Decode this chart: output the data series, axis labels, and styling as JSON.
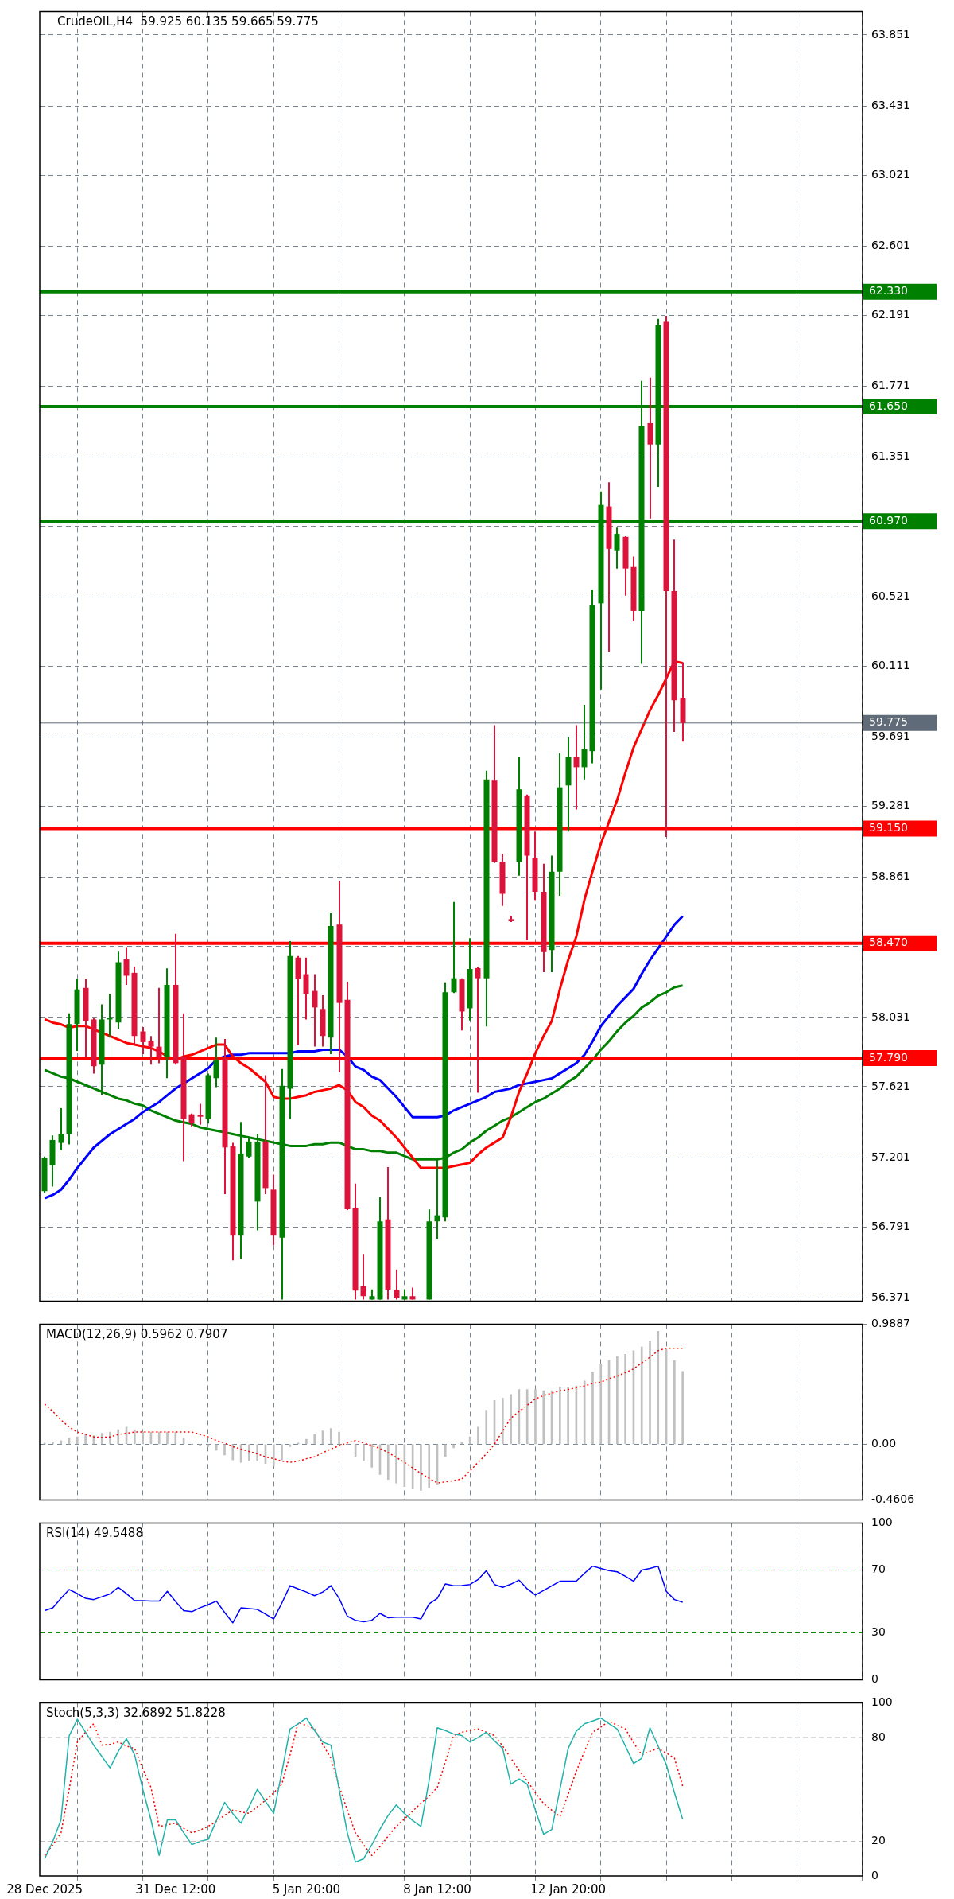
{
  "chart_data": [
    {
      "type": "candlestick",
      "title": "CrudeOIL,H4  59.925 60.135 59.665 59.775",
      "tick_labels": "y",
      "grid": true,
      "categories": [
        null,
        null,
        null,
        null,
        null,
        null,
        null,
        null,
        null,
        null,
        null,
        null,
        null,
        null,
        null,
        null,
        null,
        null,
        null,
        null,
        null,
        null,
        null,
        null,
        null,
        null,
        null,
        null,
        null,
        null,
        null,
        null,
        null,
        null,
        null,
        null,
        null,
        null,
        null,
        null,
        null,
        null,
        null,
        null,
        null,
        null,
        null,
        null,
        null,
        null,
        null,
        null,
        null,
        null,
        null,
        null,
        null,
        null,
        null,
        null,
        null,
        null,
        null,
        null,
        null,
        null,
        null,
        null,
        null,
        null,
        null,
        null,
        null,
        null,
        null,
        null,
        null,
        null,
        null
      ],
      "ohlc": [
        [
          57.002,
          57.207,
          56.993,
          57.198
        ],
        [
          57.154,
          57.332,
          57.029,
          57.305
        ],
        [
          57.288,
          57.493,
          57.243,
          57.341
        ],
        [
          57.341,
          58.055,
          57.279,
          57.992
        ],
        [
          57.992,
          58.26,
          57.832,
          58.197
        ],
        [
          58.206,
          58.26,
          57.796,
          58.01
        ],
        [
          58.019,
          58.028,
          57.698,
          57.742
        ],
        [
          57.751,
          58.108,
          57.573,
          58.019
        ],
        [
          58.019,
          58.171,
          57.912,
          58.028
        ],
        [
          58.001,
          58.42,
          57.965,
          58.358
        ],
        [
          58.376,
          58.447,
          58.224,
          58.278
        ],
        [
          58.295,
          58.331,
          57.867,
          57.921
        ],
        [
          57.948,
          57.974,
          57.814,
          57.885
        ],
        [
          57.894,
          57.921,
          57.751,
          57.858
        ],
        [
          57.858,
          58.206,
          57.76,
          57.796
        ],
        [
          57.796,
          58.322,
          57.671,
          58.224
        ],
        [
          58.224,
          58.527,
          57.751,
          57.76
        ],
        [
          57.796,
          58.055,
          57.18,
          57.43
        ],
        [
          57.457,
          57.461,
          57.386,
          57.403
        ],
        [
          57.453,
          57.519,
          57.395,
          57.443
        ],
        [
          57.43,
          57.698,
          57.403,
          57.689
        ],
        [
          57.671,
          57.912,
          57.618,
          57.778
        ],
        [
          57.787,
          57.903,
          56.984,
          57.261
        ],
        [
          57.27,
          57.288,
          56.592,
          56.743
        ],
        [
          56.743,
          57.412,
          56.601,
          57.225
        ],
        [
          57.207,
          57.314,
          57.198,
          57.296
        ],
        [
          56.94,
          57.341,
          56.77,
          57.296
        ],
        [
          57.296,
          57.689,
          56.984,
          57.02
        ],
        [
          57.011,
          57.1,
          56.681,
          56.743
        ],
        [
          56.726,
          57.725,
          56.36,
          57.626
        ],
        [
          57.609,
          58.483,
          57.43,
          58.394
        ],
        [
          58.385,
          58.394,
          57.867,
          58.26
        ],
        [
          58.287,
          58.385,
          58.019,
          58.171
        ],
        [
          58.188,
          58.287,
          57.858,
          58.09
        ],
        [
          58.081,
          58.162,
          57.858,
          57.921
        ],
        [
          57.912,
          58.652,
          57.814,
          58.572
        ],
        [
          58.581,
          58.84,
          57.707,
          58.117
        ],
        [
          58.135,
          58.242,
          56.89,
          56.895
        ],
        [
          56.904,
          57.047,
          56.36,
          56.413
        ],
        [
          56.44,
          56.63,
          56.36,
          56.38
        ],
        [
          56.36,
          56.42,
          56.36,
          56.38
        ],
        [
          56.36,
          56.966,
          56.36,
          56.823
        ],
        [
          56.835,
          57.144,
          56.36,
          56.418
        ],
        [
          56.418,
          56.538,
          56.36,
          56.37
        ],
        [
          56.36,
          56.42,
          56.36,
          56.38
        ],
        [
          56.38,
          56.43,
          56.36,
          56.36
        ],
        null,
        [
          56.36,
          56.894,
          56.36,
          56.823
        ],
        [
          56.823,
          57.192,
          56.716,
          56.859
        ],
        [
          56.847,
          58.239,
          56.823,
          58.18
        ],
        [
          58.18,
          58.715,
          58.175,
          58.263
        ],
        [
          58.256,
          58.263,
          57.954,
          58.066
        ],
        [
          58.085,
          58.501,
          58.013,
          58.318
        ],
        [
          58.323,
          58.33,
          57.585,
          58.263
        ],
        [
          58.263,
          59.493,
          57.977,
          59.441
        ],
        [
          59.434,
          59.762,
          58.946,
          58.953
        ],
        [
          58.953,
          59.001,
          58.691,
          58.763
        ],
        [
          58.613,
          58.632,
          58.596,
          58.601
        ],
        [
          58.953,
          59.572,
          58.87,
          59.382
        ],
        [
          59.346,
          59.351,
          58.489,
          58.989
        ],
        [
          58.977,
          59.132,
          58.727,
          58.775
        ],
        [
          58.775,
          58.941,
          58.299,
          58.418
        ],
        [
          58.43,
          58.989,
          58.299,
          58.894
        ],
        [
          58.894,
          59.596,
          58.751,
          59.394
        ],
        [
          59.405,
          59.691,
          59.132,
          59.572
        ],
        [
          59.572,
          59.762,
          59.263,
          59.513
        ],
        [
          59.513,
          59.883,
          59.441,
          59.62
        ],
        [
          59.608,
          60.565,
          59.536,
          60.475
        ],
        [
          60.484,
          61.147,
          59.973,
          61.067
        ],
        [
          61.058,
          61.201,
          60.197,
          60.807
        ],
        [
          60.798,
          60.932,
          60.69,
          60.896
        ],
        [
          60.878,
          60.882,
          60.529,
          60.69
        ],
        [
          60.699,
          60.762,
          60.377,
          60.439
        ],
        [
          60.439,
          61.802,
          60.125,
          61.533
        ],
        [
          61.551,
          61.82,
          60.986,
          61.425
        ],
        [
          61.425,
          62.169,
          61.174,
          62.134
        ],
        [
          62.152,
          62.187,
          59.1,
          60.556
        ],
        [
          60.556,
          60.861,
          59.722,
          59.91
        ],
        [
          59.925,
          60.135,
          59.665,
          59.775
        ]
      ],
      "colors": [
        "#008000",
        "#008000",
        "#008000",
        "#008000",
        "#008000",
        "#dc143c",
        "#dc143c",
        "#008000",
        "#008000",
        "#008000",
        "#dc143c",
        "#dc143c",
        "#dc143c",
        "#dc143c",
        "#dc143c",
        "#008000",
        "#dc143c",
        "#dc143c",
        "#dc143c",
        "#dc143c",
        "#008000",
        "#008000",
        "#dc143c",
        "#dc143c",
        "#008000",
        "#008000",
        "#008000",
        "#dc143c",
        "#dc143c",
        "#008000",
        "#008000",
        "#dc143c",
        "#dc143c",
        "#dc143c",
        "#dc143c",
        "#008000",
        "#dc143c",
        "#dc143c",
        "#dc143c",
        "#dc143c",
        "#008000",
        "#008000",
        "#dc143c",
        "#dc143c",
        "#008000",
        "#dc143c",
        null,
        "#008000",
        "#008000",
        "#008000",
        "#008000",
        "#dc143c",
        "#008000",
        "#dc143c",
        "#008000",
        "#dc143c",
        "#dc143c",
        "#dc143c",
        "#008000",
        "#dc143c",
        "#dc143c",
        "#dc143c",
        "#008000",
        "#008000",
        "#008000",
        "#dc143c",
        "#008000",
        "#008000",
        "#008000",
        "#dc143c",
        "#008000",
        "#dc143c",
        "#dc143c",
        "#008000",
        "#dc143c",
        "#008000",
        "#dc143c",
        "#dc143c",
        "#dc143c"
      ],
      "series": [
        {
          "type": "line",
          "color": "#ff0000",
          "values": [
            58.02,
            58.0,
            57.99,
            57.97,
            57.98,
            57.98,
            57.96,
            57.94,
            57.92,
            57.9,
            57.88,
            57.87,
            57.86,
            57.85,
            57.83,
            57.8,
            57.78,
            57.8,
            57.81,
            57.83,
            57.85,
            57.87,
            57.87,
            57.8,
            57.76,
            57.73,
            57.69,
            57.65,
            57.56,
            57.55,
            57.55,
            57.56,
            57.57,
            57.59,
            57.6,
            57.61,
            57.63,
            57.6,
            57.53,
            57.5,
            57.45,
            57.42,
            57.37,
            57.32,
            57.26,
            57.2,
            57.14,
            57.14,
            57.14,
            57.14,
            57.15,
            57.16,
            57.17,
            57.22,
            57.26,
            57.29,
            57.32,
            57.44,
            57.59,
            57.7,
            57.82,
            57.92,
            58.01,
            58.2,
            58.37,
            58.51,
            58.73,
            58.9,
            59.06,
            59.19,
            59.32,
            59.48,
            59.63,
            59.74,
            59.85,
            59.94,
            60.04,
            60.14,
            60.13
          ]
        },
        {
          "type": "line",
          "color": "#0000ff",
          "values": [
            56.96,
            56.98,
            57.01,
            57.07,
            57.14,
            57.2,
            57.26,
            57.3,
            57.34,
            57.37,
            57.4,
            57.43,
            57.47,
            57.5,
            57.53,
            57.57,
            57.61,
            57.64,
            57.67,
            57.7,
            57.73,
            57.78,
            57.8,
            57.81,
            57.81,
            57.82,
            57.82,
            57.82,
            57.82,
            57.82,
            57.82,
            57.83,
            57.83,
            57.83,
            57.84,
            57.84,
            57.84,
            57.8,
            57.74,
            57.72,
            57.68,
            57.66,
            57.61,
            57.56,
            57.5,
            57.44,
            57.44,
            57.44,
            57.44,
            57.45,
            57.48,
            57.5,
            57.52,
            57.54,
            57.56,
            57.59,
            57.6,
            57.61,
            57.63,
            57.64,
            57.65,
            57.66,
            57.67,
            57.7,
            57.73,
            57.76,
            57.81,
            57.89,
            57.98,
            58.04,
            58.1,
            58.15,
            58.2,
            58.29,
            58.37,
            58.44,
            58.51,
            58.58,
            58.63
          ]
        },
        {
          "type": "line",
          "color": "#008000",
          "values": [
            57.72,
            57.7,
            57.68,
            57.67,
            57.65,
            57.63,
            57.61,
            57.59,
            57.57,
            57.55,
            57.54,
            57.52,
            57.51,
            57.48,
            57.46,
            57.44,
            57.42,
            57.41,
            57.4,
            57.38,
            57.37,
            57.36,
            57.35,
            57.34,
            57.33,
            57.32,
            57.31,
            57.3,
            57.29,
            57.28,
            57.27,
            57.27,
            57.27,
            57.28,
            57.28,
            57.29,
            57.29,
            57.27,
            57.25,
            57.25,
            57.24,
            57.24,
            57.23,
            57.23,
            57.21,
            57.19,
            57.19,
            57.19,
            57.19,
            57.2,
            57.23,
            57.25,
            57.29,
            57.32,
            57.36,
            57.39,
            57.42,
            57.44,
            57.47,
            57.5,
            57.53,
            57.55,
            57.58,
            57.61,
            57.65,
            57.68,
            57.73,
            57.78,
            57.84,
            57.89,
            57.95,
            58.0,
            58.04,
            58.09,
            58.12,
            58.16,
            58.18,
            58.21,
            58.22
          ]
        }
      ],
      "ylim": [
        56.35,
        63.99
      ],
      "yticks": [
        63.851,
        63.431,
        63.021,
        62.601,
        62.191,
        61.771,
        61.351,
        {
          "value": 60.941,
          "label": null
        },
        60.521,
        60.111,
        59.691,
        59.281,
        58.861,
        {
          "value": 58.451,
          "label": null
        },
        58.031,
        57.621,
        57.201,
        56.791,
        56.371
      ],
      "ref_lines": [
        {
          "axis": "y",
          "value": 62.33,
          "label": "62.330",
          "color": "#008000"
        },
        {
          "axis": "y",
          "value": 61.65,
          "label": "61.650",
          "color": "#008000"
        },
        {
          "axis": "y",
          "value": 60.97,
          "label": "60.970",
          "color": "#008000"
        },
        {
          "axis": "y",
          "value": 59.775,
          "label": "59.775",
          "color": "#5f6b78",
          "line_style": "solid"
        },
        {
          "axis": "y",
          "value": 59.15,
          "label": "59.150",
          "color": "#ff0000"
        },
        {
          "axis": "y",
          "value": 58.47,
          "label": "58.470",
          "color": "#ff0000"
        },
        {
          "axis": "y",
          "value": 57.79,
          "label": "57.790",
          "color": "#ff0000"
        }
      ]
    },
    {
      "type": "bar",
      "title": "MACD(12,26,9) 0.5962 0.7907",
      "tick_labels": "y",
      "grid": true,
      "categories": [
        null,
        null,
        null,
        null,
        null,
        null,
        null,
        null,
        null,
        null,
        null,
        null,
        null,
        null,
        null,
        null,
        null,
        null,
        null,
        null,
        null,
        null,
        null,
        null,
        null,
        null,
        null,
        null,
        null,
        null,
        null,
        null,
        null,
        null,
        null,
        null,
        null,
        null,
        null,
        null,
        null,
        null,
        null,
        null,
        null,
        null,
        null,
        null,
        null,
        null,
        null,
        null,
        null,
        null,
        null,
        null,
        null,
        null,
        null,
        null,
        null,
        null,
        null,
        null,
        null,
        null,
        null,
        null,
        null,
        null,
        null,
        null,
        null,
        null,
        null,
        null,
        null,
        null,
        null
      ],
      "series": [
        {
          "type": "bar",
          "color": "#c0c0c0",
          "values": [
            0.01,
            0.02,
            0.03,
            0.05,
            0.06,
            0.08,
            0.07,
            0.09,
            0.1,
            0.12,
            0.14,
            0.12,
            0.1,
            0.1,
            0.1,
            0.1,
            0.1,
            0.05,
            0.0,
            -0.01,
            -0.02,
            -0.05,
            -0.09,
            -0.13,
            -0.15,
            -0.14,
            -0.14,
            -0.16,
            -0.18,
            -0.13,
            -0.02,
            0.01,
            0.04,
            0.08,
            0.11,
            0.13,
            0.1,
            0.0,
            -0.1,
            -0.14,
            -0.19,
            -0.25,
            -0.29,
            -0.32,
            -0.35,
            -0.37,
            -0.38,
            -0.36,
            -0.33,
            -0.1,
            -0.03,
            0.02,
            0.06,
            0.14,
            0.28,
            0.36,
            0.38,
            0.41,
            0.45,
            0.45,
            0.45,
            0.44,
            0.44,
            0.47,
            0.47,
            0.48,
            0.52,
            0.59,
            0.66,
            0.69,
            0.72,
            0.74,
            0.77,
            0.8,
            0.85,
            0.93,
            0.78,
            0.69,
            0.6
          ]
        },
        {
          "type": "line",
          "color": "#ff0000",
          "line_style": "dotted",
          "values": [
            0.33,
            0.27,
            0.2,
            0.14,
            0.1,
            0.08,
            0.06,
            0.055,
            0.06,
            0.08,
            0.09,
            0.1,
            0.1,
            0.1,
            0.1,
            0.1,
            0.1,
            0.1,
            0.1,
            0.08,
            0.06,
            0.03,
            0.01,
            -0.02,
            -0.04,
            -0.06,
            -0.08,
            -0.105,
            -0.12,
            -0.14,
            -0.15,
            -0.14,
            -0.12,
            -0.105,
            -0.07,
            -0.04,
            -0.014,
            0.01,
            0.03,
            0.01,
            -0.01,
            -0.036,
            -0.07,
            -0.11,
            -0.15,
            -0.196,
            -0.24,
            -0.28,
            -0.32,
            -0.31,
            -0.3,
            -0.287,
            -0.22,
            -0.15,
            -0.08,
            0.0,
            0.11,
            0.214,
            0.27,
            0.32,
            0.374,
            0.4,
            0.42,
            0.44,
            0.45,
            0.465,
            0.48,
            0.5,
            0.51,
            0.54,
            0.56,
            0.59,
            0.62,
            0.67,
            0.716,
            0.77,
            0.79,
            0.79,
            0.79
          ]
        }
      ],
      "ylim": [
        -0.4606,
        0.9887
      ],
      "yticks": [
        0.9887,
        {
          "value": 0,
          "label": "0.00"
        },
        -0.4606
      ]
    },
    {
      "type": "line",
      "title": "RSI(14) 49.5488",
      "tick_labels": "y",
      "grid": "x",
      "categories": [
        null,
        null,
        null,
        null,
        null,
        null,
        null,
        null,
        null,
        null,
        null,
        null,
        null,
        null,
        null,
        null,
        null,
        null,
        null,
        null,
        null,
        null,
        null,
        null,
        null,
        null,
        null,
        null,
        null,
        null,
        null,
        null,
        null,
        null,
        null,
        null,
        null,
        null,
        null,
        null,
        null,
        null,
        null,
        null,
        null,
        null,
        null,
        null,
        null,
        null,
        null,
        null,
        null,
        null,
        null,
        null,
        null,
        null,
        null,
        null,
        null,
        null,
        null,
        null,
        null,
        null,
        null,
        null,
        null,
        null,
        null,
        null,
        null,
        null,
        null,
        null,
        null,
        null,
        null
      ],
      "series": [
        {
          "type": "line",
          "color": "#0000ff",
          "values": [
            44.2,
            45.9,
            52,
            57.6,
            55,
            52,
            51.2,
            53,
            54.8,
            59.0,
            55,
            50.5,
            50.5,
            50.3,
            50.2,
            56.5,
            50,
            44.2,
            43.5,
            46,
            48,
            50.2,
            43,
            36.4,
            45.9,
            45.5,
            44.9,
            42,
            38.8,
            49,
            60.1,
            58,
            56,
            53.7,
            56,
            60.1,
            52,
            40.6,
            38,
            37.1,
            38,
            42.4,
            39.6,
            40,
            40,
            40,
            38.8,
            48.4,
            52,
            61.2,
            60,
            60.1,
            60.8,
            64,
            69.6,
            60.8,
            59.0,
            61,
            63.6,
            58,
            54.1,
            57,
            60,
            62.9,
            62.9,
            62.9,
            68,
            72.5,
            71,
            69.6,
            68.9,
            66,
            62.9,
            70,
            71,
            72.5,
            56.5,
            51.2,
            49.5
          ]
        }
      ],
      "ylim": [
        0,
        100
      ],
      "yticks": [
        0,
        30,
        70,
        100
      ],
      "ref_lines": [
        {
          "axis": "y",
          "value": 70,
          "color": "#008000",
          "line_style": "dashed"
        },
        {
          "axis": "y",
          "value": 30,
          "color": "#008000",
          "line_style": "dashed"
        }
      ]
    },
    {
      "type": "line",
      "title": "Stoch(5,3,3) 32.6892 51.8228",
      "grid": "x",
      "categories": [
        "28 Dec 2025",
        null,
        null,
        null,
        null,
        null,
        null,
        null,
        null,
        null,
        null,
        null,
        null,
        null,
        null,
        null,
        "31 Dec 12:00",
        null,
        null,
        null,
        null,
        null,
        null,
        null,
        null,
        null,
        null,
        null,
        null,
        null,
        null,
        null,
        "5 Jan 20:00",
        null,
        null,
        null,
        null,
        null,
        null,
        null,
        null,
        null,
        null,
        null,
        null,
        null,
        null,
        null,
        "8 Jan 12:00",
        null,
        null,
        null,
        null,
        null,
        null,
        null,
        null,
        null,
        null,
        null,
        null,
        null,
        null,
        null,
        "12 Jan 20:00",
        null,
        null,
        null,
        null,
        null,
        null,
        null,
        null,
        null,
        null,
        null,
        null,
        null,
        null
      ],
      "series": [
        {
          "type": "line",
          "color": "#20b2aa",
          "values": [
            9.9,
            20,
            32.4,
            81,
            90.5,
            83,
            75.5,
            69,
            62.4,
            72,
            79.2,
            69.9,
            50,
            32.4,
            11.8,
            32.4,
            32.4,
            25,
            18.1,
            20,
            21.1,
            32,
            42.5,
            36,
            30.5,
            40,
            50,
            43,
            36.1,
            60,
            84.9,
            88,
            91.2,
            84,
            77.4,
            75.5,
            50,
            25,
            8,
            9.9,
            18,
            27,
            35,
            41,
            36,
            32,
            28.6,
            55,
            85.6,
            84,
            82,
            81.1,
            77.4,
            80,
            83,
            78,
            73.6,
            53,
            56,
            53,
            38,
            24.1,
            26.8,
            50,
            73.6,
            83.7,
            87.9,
            89.5,
            91.2,
            88,
            84.9,
            75,
            65,
            68,
            85.6,
            75,
            64.3,
            48,
            32.7
          ]
        },
        {
          "type": "line",
          "color": "#ff0000",
          "line_style": "dotted",
          "values": [
            11.8,
            18,
            24.9,
            50,
            77.4,
            83,
            87.9,
            75.5,
            76,
            77.4,
            75,
            73.6,
            62,
            51.1,
            28.6,
            29.5,
            30.5,
            27.5,
            24.9,
            26.5,
            28.6,
            31.5,
            35,
            38,
            37,
            36.1,
            40,
            43.6,
            48,
            53,
            70,
            88.6,
            87,
            84.9,
            76,
            68,
            52,
            38,
            24.9,
            18,
            11.8,
            17,
            23,
            28.6,
            33,
            37.4,
            42,
            46,
            51.1,
            66,
            81.1,
            83,
            84,
            84.9,
            83,
            81.1,
            75,
            68,
            61,
            54.9,
            48,
            41.8,
            38,
            34.3,
            47,
            60.5,
            72,
            83,
            86,
            89.4,
            87,
            84.9,
            77,
            69.9,
            72,
            73.6,
            71,
            68,
            51.8
          ]
        }
      ],
      "ylim": [
        0,
        100
      ],
      "yticks": [
        0,
        20,
        80,
        100
      ],
      "ref_lines": [
        {
          "axis": "y",
          "value": 80,
          "color": "#c0c0c0",
          "line_style": "dashed"
        },
        {
          "axis": "y",
          "value": 20,
          "color": "#c0c0c0",
          "line_style": "dashed"
        }
      ]
    }
  ]
}
